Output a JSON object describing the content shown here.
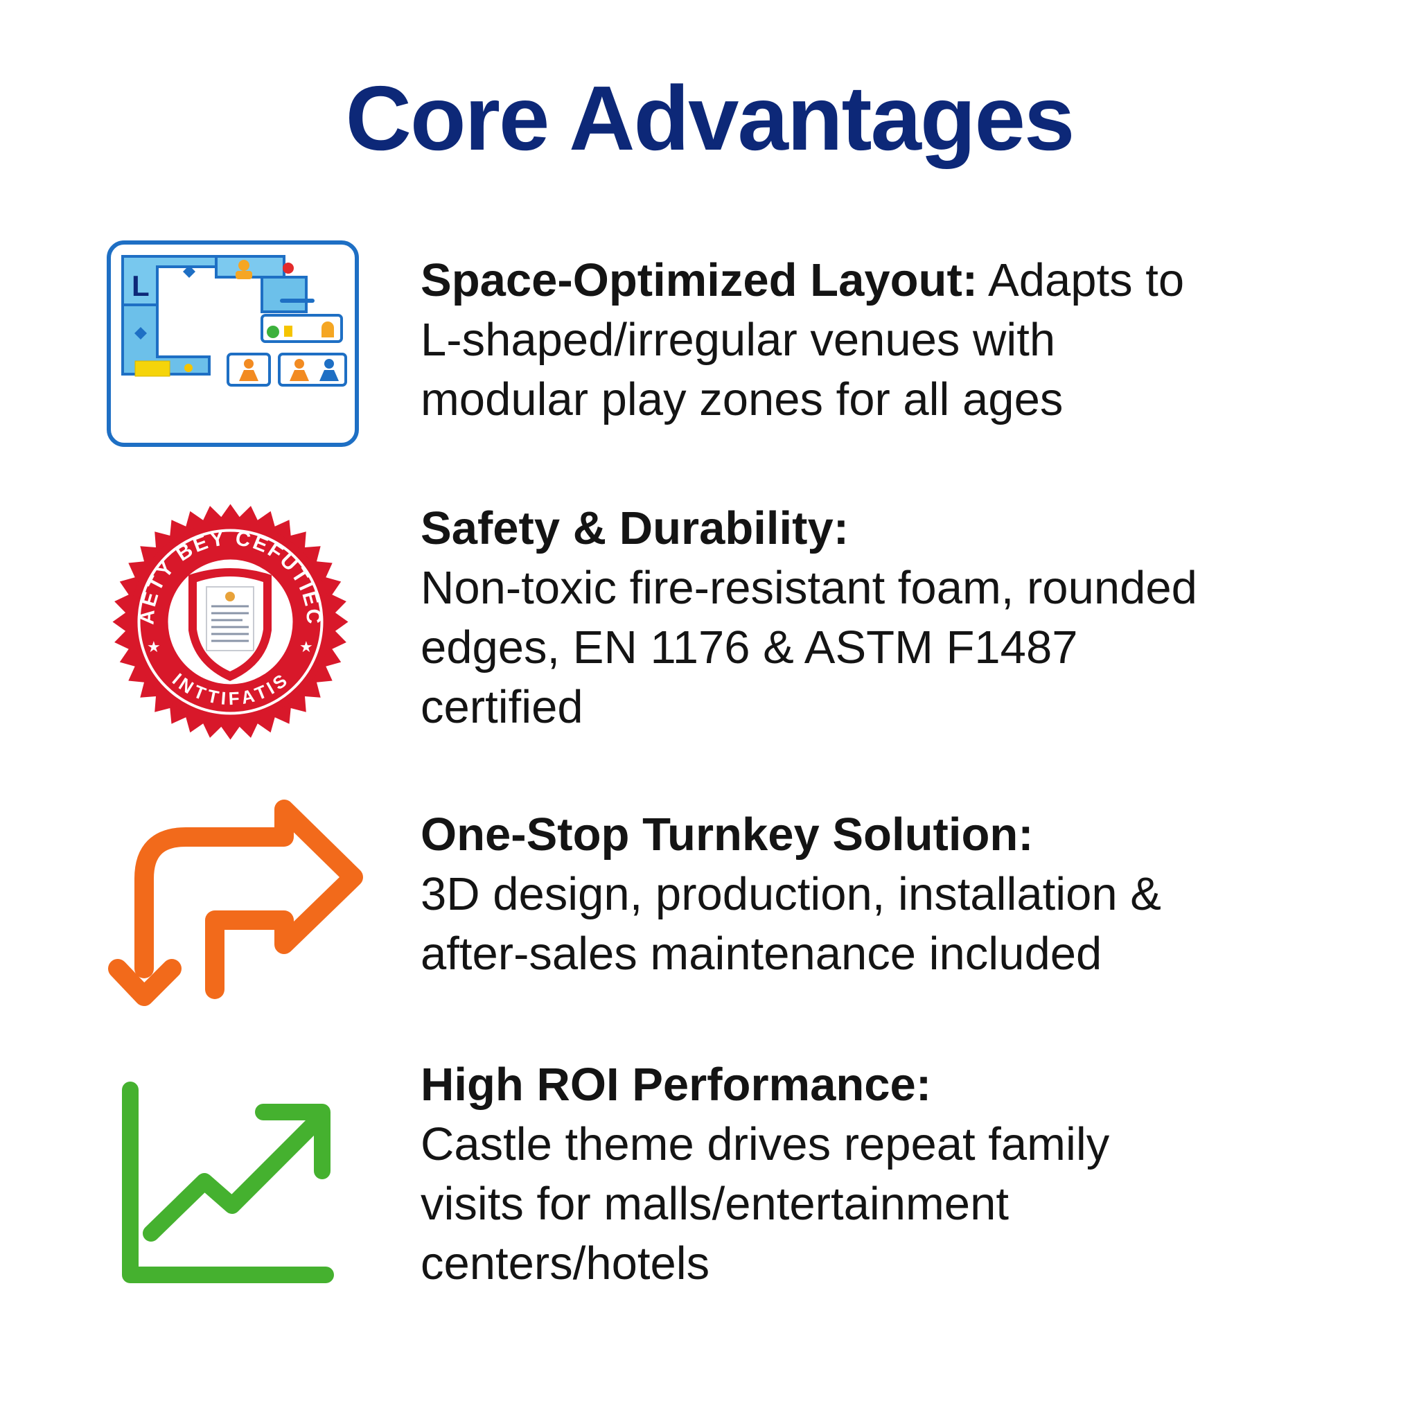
{
  "title": "Core Advantages",
  "items": [
    {
      "heading": "Space-Optimized Layout:",
      "lines": [
        "Adapts to",
        "L-shaped/irregular venues with",
        "modular play zones for all ages"
      ],
      "icon": "floor-plan-icon",
      "color": "#1e6fc4"
    },
    {
      "heading": "Safety & Durability:",
      "lines": [
        "Non-toxic fire-resistant foam, rounded",
        "edges, EN 1176 & ASTM F1487",
        "certified"
      ],
      "icon": "certification-seal-icon",
      "color": "#d8182a",
      "seal_text_top": "SAETY BEY CEFUTIECT",
      "seal_text_bottom": "INTTIFATIS"
    },
    {
      "heading": "One-Stop Turnkey Solution:",
      "lines": [
        "3D design, production, installation &",
        "after-sales maintenance included"
      ],
      "icon": "turnkey-arrows-icon",
      "color": "#f26a1b"
    },
    {
      "heading": "High ROI Performance:",
      "lines": [
        "Castle theme drives repeat family",
        "visits for malls/entertainment",
        "centers/hotels"
      ],
      "icon": "growth-chart-icon",
      "color": "#45b12f"
    }
  ]
}
